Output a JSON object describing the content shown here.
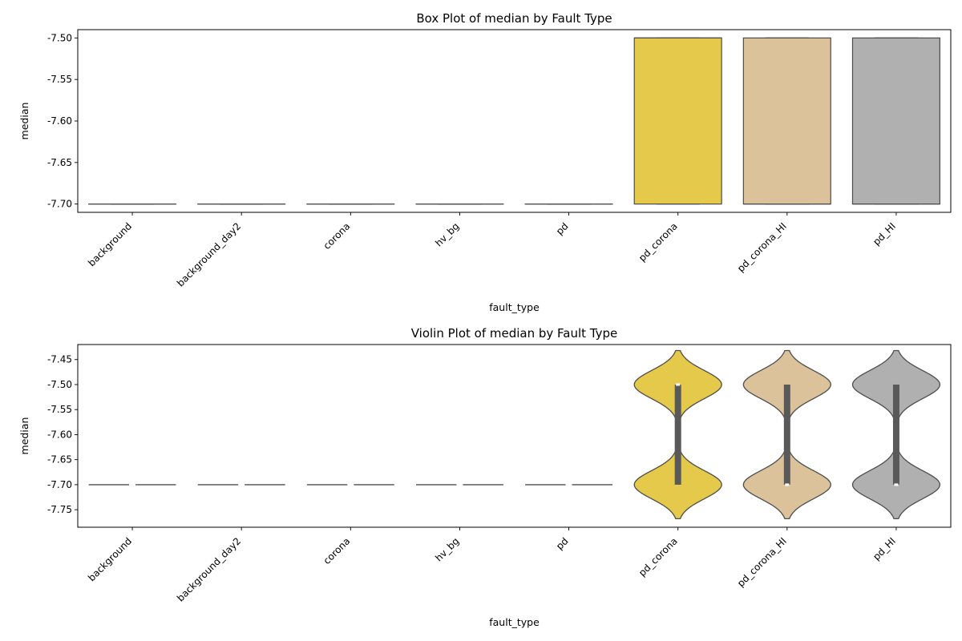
{
  "chart_data": [
    {
      "type": "box",
      "title": "Box Plot of median by Fault Type",
      "xlabel": "fault_type",
      "ylabel": "median",
      "ylim": [
        -7.71,
        -7.49
      ],
      "yticks": [
        "-7.70",
        "-7.65",
        "-7.60",
        "-7.55",
        "-7.50"
      ],
      "categories": [
        "background",
        "background_day2",
        "corona",
        "hv_bg",
        "pd",
        "pd_corona",
        "pd_corona_HI",
        "pd_HI"
      ],
      "colors": [
        "#4c72b0",
        "#dd8452",
        "#55a868",
        "#c44e52",
        "#8172b3",
        "#e5c94a",
        "#dbc29b",
        "#b0b0b0"
      ],
      "boxes": [
        {
          "q1": -7.7,
          "median": -7.7,
          "q3": -7.7,
          "whislo": -7.7,
          "whishi": -7.7
        },
        {
          "q1": -7.7,
          "median": -7.7,
          "q3": -7.7,
          "whislo": -7.7,
          "whishi": -7.7
        },
        {
          "q1": -7.7,
          "median": -7.7,
          "q3": -7.7,
          "whislo": -7.7,
          "whishi": -7.7
        },
        {
          "q1": -7.7,
          "median": -7.7,
          "q3": -7.7,
          "whislo": -7.7,
          "whishi": -7.7
        },
        {
          "q1": -7.7,
          "median": -7.7,
          "q3": -7.7,
          "whislo": -7.7,
          "whishi": -7.7
        },
        {
          "q1": -7.7,
          "median": -7.5,
          "q3": -7.5,
          "whislo": -7.7,
          "whishi": -7.5
        },
        {
          "q1": -7.7,
          "median": -7.7,
          "q3": -7.5,
          "whislo": -7.7,
          "whishi": -7.5
        },
        {
          "q1": -7.7,
          "median": -7.7,
          "q3": -7.5,
          "whislo": -7.7,
          "whishi": -7.5
        }
      ]
    },
    {
      "type": "violin",
      "title": "Violin Plot of median by Fault Type",
      "xlabel": "fault_type",
      "ylabel": "median",
      "ylim": [
        -7.785,
        -7.42
      ],
      "yticks": [
        "-7.75",
        "-7.70",
        "-7.65",
        "-7.60",
        "-7.55",
        "-7.50",
        "-7.45"
      ],
      "categories": [
        "background",
        "background_day2",
        "corona",
        "hv_bg",
        "pd",
        "pd_corona",
        "pd_corona_HI",
        "pd_HI"
      ],
      "colors": [
        "#4c72b0",
        "#dd8452",
        "#55a868",
        "#c44e52",
        "#8172b3",
        "#e5c94a",
        "#dbc29b",
        "#b0b0b0"
      ],
      "violins": [
        {
          "degenerate": true,
          "value": -7.7
        },
        {
          "degenerate": true,
          "value": -7.7
        },
        {
          "degenerate": true,
          "value": -7.7
        },
        {
          "degenerate": true,
          "value": -7.7
        },
        {
          "degenerate": true,
          "value": -7.7
        },
        {
          "degenerate": false,
          "modes": [
            -7.5,
            -7.7
          ],
          "ymin": -7.768,
          "ymax": -7.432,
          "q1": -7.7,
          "median": -7.5,
          "q3": -7.5
        },
        {
          "degenerate": false,
          "modes": [
            -7.5,
            -7.7
          ],
          "ymin": -7.768,
          "ymax": -7.432,
          "q1": -7.7,
          "median": -7.7,
          "q3": -7.5
        },
        {
          "degenerate": false,
          "modes": [
            -7.5,
            -7.7
          ],
          "ymin": -7.768,
          "ymax": -7.432,
          "q1": -7.7,
          "median": -7.7,
          "q3": -7.5
        }
      ]
    }
  ]
}
